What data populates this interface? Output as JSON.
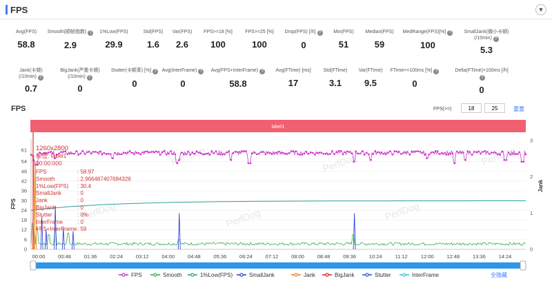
{
  "header": {
    "title": "FPS",
    "collapse_icon": "chevron-down-icon"
  },
  "metrics_row1": [
    {
      "label": "Avg(FPS)",
      "value": "58.8"
    },
    {
      "label": "Smooth(顺帧指数)",
      "value": "2.9"
    },
    {
      "label": "1%Low(FPS)",
      "value": "29.9"
    },
    {
      "label": "Std(FPS)",
      "value": "1.6"
    },
    {
      "label": "Var(FPS)",
      "value": "2.6"
    },
    {
      "label": "FPS>=18 [%]",
      "value": "100"
    },
    {
      "label": "FPS>=25 [%]",
      "value": "100"
    },
    {
      "label": "Drop(FPS) [/h]",
      "value": "0"
    },
    {
      "label": "Min(FPS)",
      "value": "51"
    },
    {
      "label": "Median(FPS)",
      "value": "59"
    },
    {
      "label": "MedRange(FPS)[%]",
      "value": "100"
    },
    {
      "label": "SmallJank(微小卡顿)\n(/10min)",
      "value": "5.3"
    }
  ],
  "metrics_row2": [
    {
      "label": "Jank(卡顿)\n(/10min)",
      "value": "0.7"
    },
    {
      "label": "BigJank(严重卡顿)\n(/10min)",
      "value": "0"
    },
    {
      "label": "Stutter(卡顿率) [%]",
      "value": "0"
    },
    {
      "label": "Avg(InterFrame)",
      "value": "0"
    },
    {
      "label": "Avg(FPS+InterFrame)",
      "value": "58.8"
    },
    {
      "label": "Avg(FTime) [ms]",
      "value": "17"
    },
    {
      "label": "Std(FTime)",
      "value": "3.1"
    },
    {
      "label": "Var(FTime)",
      "value": "9.5"
    },
    {
      "label": "FTime>=100ms [%]",
      "value": "0"
    },
    {
      "label": "Delta(FTime)>100ms [/h]",
      "value": "0"
    }
  ],
  "chart_section": {
    "title": "FPS",
    "fps_filter_label": "FPS(>=)",
    "fps_low": "18",
    "fps_high": "25",
    "reset_label": "重置",
    "label_bar": "label1",
    "hide_all_label": "全隐藏"
  },
  "colors": {
    "fps": "#cc33cc",
    "smooth": "#33aa55",
    "low1": "#2aa198",
    "smalljank": "#3344dd",
    "jank": "#f08020",
    "bigjank": "#dd2222",
    "stutter": "#2255ee",
    "interframe": "#33c3d8",
    "label_bar": "#f06070",
    "scrollbar": "#2e96e8",
    "tooltip_text": "#cc3333"
  },
  "chart_data": {
    "type": "line",
    "title": "",
    "xlabel": "",
    "ylabel": "FPS",
    "y2label": "Jank",
    "ylim": [
      0,
      67
    ],
    "y2lim": [
      0,
      3
    ],
    "yticks": [
      0,
      6,
      12,
      18,
      24,
      30,
      36,
      42,
      48,
      54,
      61
    ],
    "y2ticks": [
      0,
      1,
      2,
      3
    ],
    "x_ticks": [
      "00:00",
      "00:48",
      "01:36",
      "02:24",
      "03:12",
      "04:00",
      "04:48",
      "05:36",
      "06:24",
      "07:12",
      "08:00",
      "08:48",
      "09:36",
      "10:24",
      "11:12",
      "12:00",
      "12:48",
      "13:36",
      "14:24"
    ],
    "duration_seconds": 918,
    "series": [
      {
        "name": "FPS",
        "baseline": 59.4,
        "noise": 1.2,
        "dips": [
          [
            5,
            55
          ],
          [
            10,
            52
          ],
          [
            45,
            56
          ],
          [
            150,
            56
          ],
          [
            270,
            53
          ],
          [
            275,
            55
          ],
          [
            370,
            55
          ],
          [
            405,
            53
          ],
          [
            600,
            54
          ],
          [
            630,
            55
          ],
          [
            735,
            56
          ],
          [
            785,
            53
          ],
          [
            805,
            55
          ],
          [
            880,
            55
          ],
          [
            912,
            54
          ]
        ]
      },
      {
        "name": "Smooth",
        "baseline": 3.2,
        "noise": 1.8,
        "spikes": [
          [
            3,
            16
          ],
          [
            10,
            13
          ],
          [
            32,
            9
          ],
          [
            45,
            11
          ],
          [
            68,
            10
          ],
          [
            275,
            6
          ],
          [
            598,
            9
          ]
        ]
      },
      {
        "name": "1%Low(FPS)",
        "start": 24,
        "end": 29.9
      },
      {
        "name": "SmallJank",
        "axis": "right",
        "spikes": [
          [
            20,
            0.9
          ],
          [
            28,
            0.55
          ],
          [
            45,
            1.2
          ],
          [
            60,
            0.6
          ],
          [
            78,
            0.5
          ],
          [
            275,
            1.0
          ],
          [
            600,
            1.0
          ]
        ]
      },
      {
        "name": "Jank",
        "axis": "right",
        "spikes": [
          [
            5,
            2.6
          ],
          [
            8,
            2.3
          ]
        ]
      },
      {
        "name": "BigJank",
        "axis": "right",
        "spikes": []
      },
      {
        "name": "Stutter",
        "axis": "right",
        "spikes": []
      },
      {
        "name": "InterFrame",
        "axis": "right",
        "spikes": []
      }
    ],
    "legend_position": "bottom",
    "tooltip": {
      "resolution": "1260x2800",
      "title": "标签: label1",
      "time": "00:00:000",
      "rows": [
        [
          "FPS",
          ": 58.97"
        ],
        [
          "Smooth",
          ": 2.966487407684326"
        ],
        [
          "1%Low(FPS)",
          ": 30.4"
        ],
        [
          "SmallJank",
          ": 0"
        ],
        [
          "Jank",
          ": 0"
        ],
        [
          "BigJank",
          ": 0"
        ],
        [
          "Stutter",
          ": 0%"
        ],
        [
          "InterFrame",
          ": 0"
        ],
        [
          "FPS+InterFrame",
          ": 59"
        ]
      ]
    },
    "watermark": "PerfDog"
  }
}
